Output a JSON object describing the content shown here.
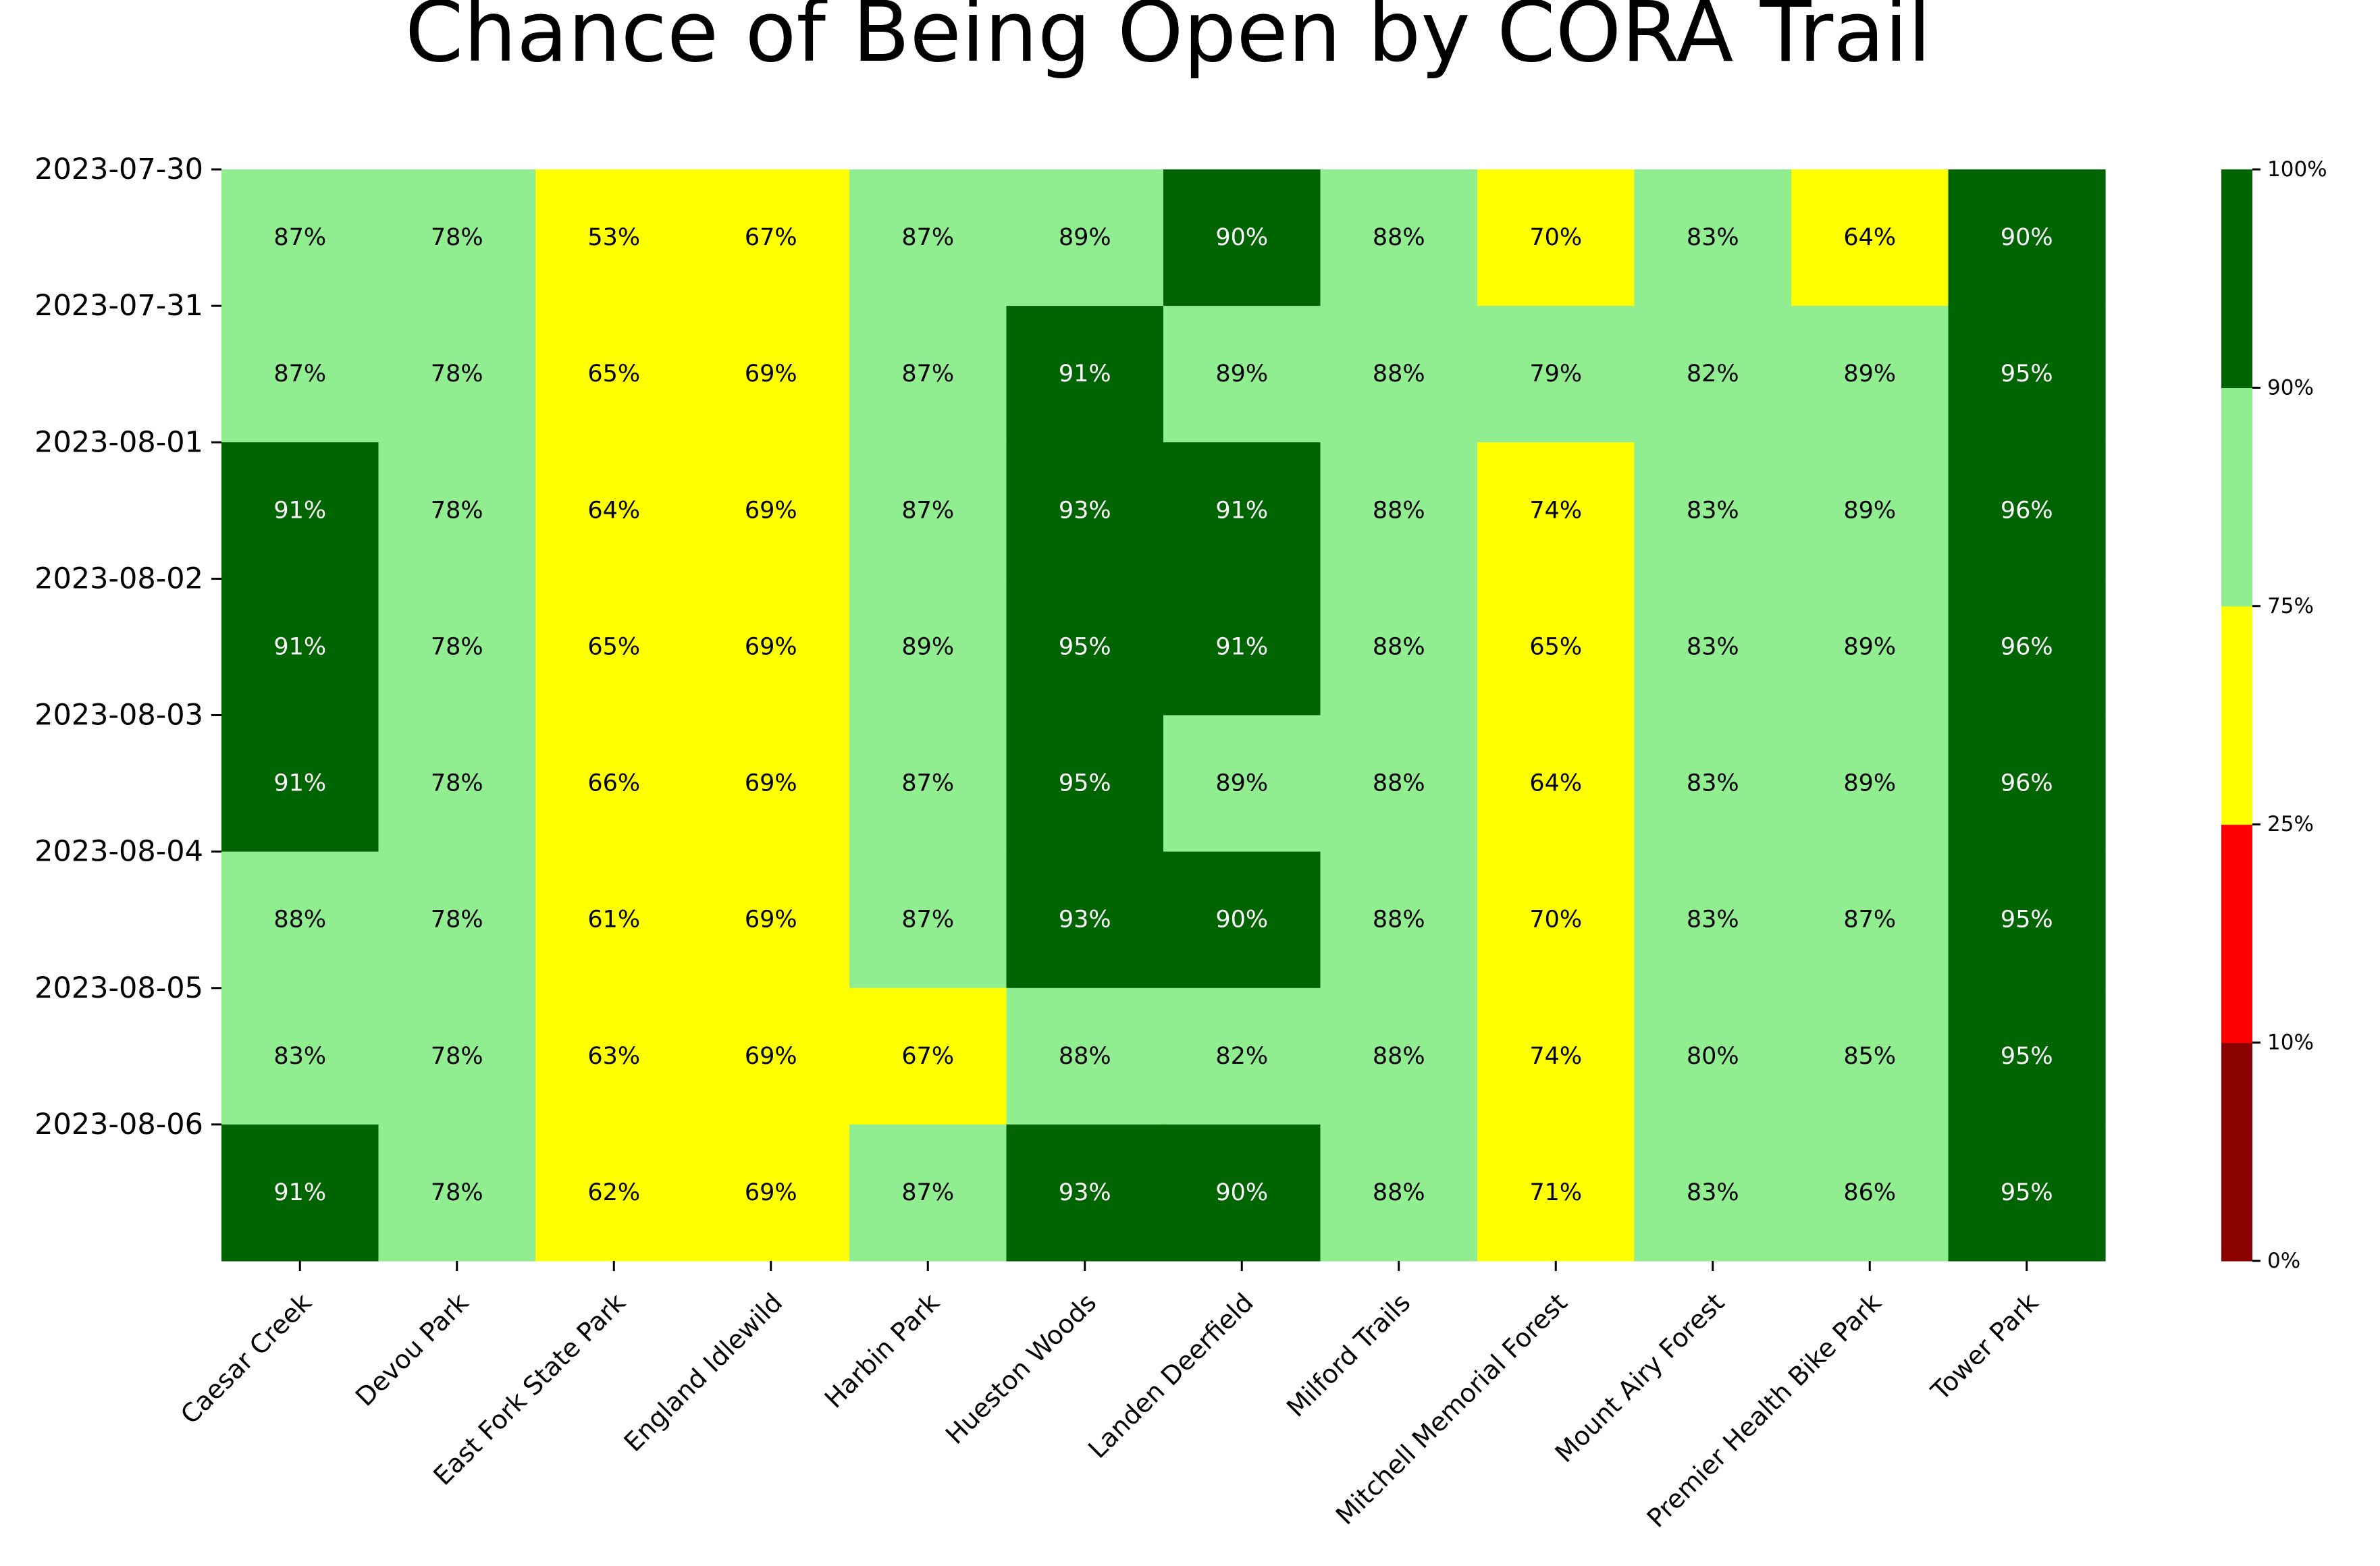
{
  "chart_data": {
    "type": "heatmap",
    "title": "Chance of Being Open by CORA Trail",
    "xlabel": "",
    "ylabel": "",
    "rows": [
      "2023-07-30",
      "2023-07-31",
      "2023-08-01",
      "2023-08-02",
      "2023-08-03",
      "2023-08-04",
      "2023-08-05",
      "2023-08-06"
    ],
    "columns": [
      "Caesar Creek",
      "Devou Park",
      "East Fork State Park",
      "England Idlewild",
      "Harbin Park",
      "Hueston Woods",
      "Landen Deerfield",
      "Milford Trails",
      "Mitchell Memorial Forest",
      "Mount Airy Forest",
      "Premier Health Bike Park",
      "Tower Park"
    ],
    "values": [
      [
        87,
        78,
        53,
        67,
        87,
        89,
        90,
        88,
        70,
        83,
        64,
        90
      ],
      [
        87,
        78,
        65,
        69,
        87,
        91,
        89,
        88,
        79,
        82,
        89,
        95
      ],
      [
        91,
        78,
        64,
        69,
        87,
        93,
        91,
        88,
        74,
        83,
        89,
        96
      ],
      [
        91,
        78,
        65,
        69,
        89,
        95,
        91,
        88,
        65,
        83,
        89,
        96
      ],
      [
        91,
        78,
        66,
        69,
        87,
        95,
        89,
        88,
        64,
        83,
        89,
        96
      ],
      [
        88,
        78,
        61,
        69,
        87,
        93,
        90,
        88,
        70,
        83,
        87,
        95
      ],
      [
        83,
        78,
        63,
        69,
        67,
        88,
        82,
        88,
        74,
        80,
        85,
        95
      ],
      [
        91,
        78,
        62,
        69,
        87,
        93,
        90,
        88,
        71,
        83,
        86,
        95
      ]
    ],
    "value_format": "percent",
    "colorbar": {
      "boundaries": [
        0,
        10,
        25,
        75,
        90,
        100
      ],
      "tick_labels": [
        "0%",
        "10%",
        "25%",
        "75%",
        "90%",
        "100%"
      ],
      "colors": [
        "#8b0000",
        "#ff0000",
        "#ffff00",
        "#90ee90",
        "#006400"
      ]
    },
    "label_colors": {
      "dark_bg": "#ffffff",
      "light_bg": "#000000"
    },
    "grid": false
  }
}
